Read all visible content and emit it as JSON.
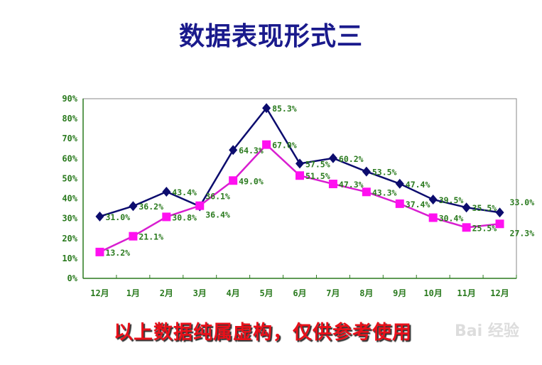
{
  "title": "数据表现形式三",
  "footer": "以上数据纯属虚构，仅供参考使用",
  "watermark": "Bai 经验",
  "chart_data": {
    "type": "line",
    "title": "数据表现形式三",
    "categories": [
      "12月",
      "1月",
      "2月",
      "3月",
      "4月",
      "5月",
      "6月",
      "7月",
      "8月",
      "9月",
      "10月",
      "11月",
      "12月"
    ],
    "ylim": [
      0,
      90
    ],
    "yticks": [
      "0%",
      "10%",
      "20%",
      "30%",
      "40%",
      "50%",
      "60%",
      "70%",
      "80%",
      "90%"
    ],
    "grid": false,
    "legend": "none",
    "series": [
      {
        "color": "#0c0c6e",
        "marker": "diamond",
        "values": [
          31.0,
          36.2,
          43.4,
          36.1,
          64.3,
          85.3,
          57.5,
          60.2,
          53.5,
          47.4,
          39.5,
          35.5,
          33.0
        ]
      },
      {
        "color": "#ff10f0",
        "line_color": "#d81ed0",
        "marker": "square",
        "values": [
          13.2,
          21.1,
          30.8,
          36.4,
          49.0,
          67.0,
          51.5,
          47.3,
          43.3,
          37.4,
          30.4,
          25.5,
          27.3
        ]
      }
    ]
  }
}
